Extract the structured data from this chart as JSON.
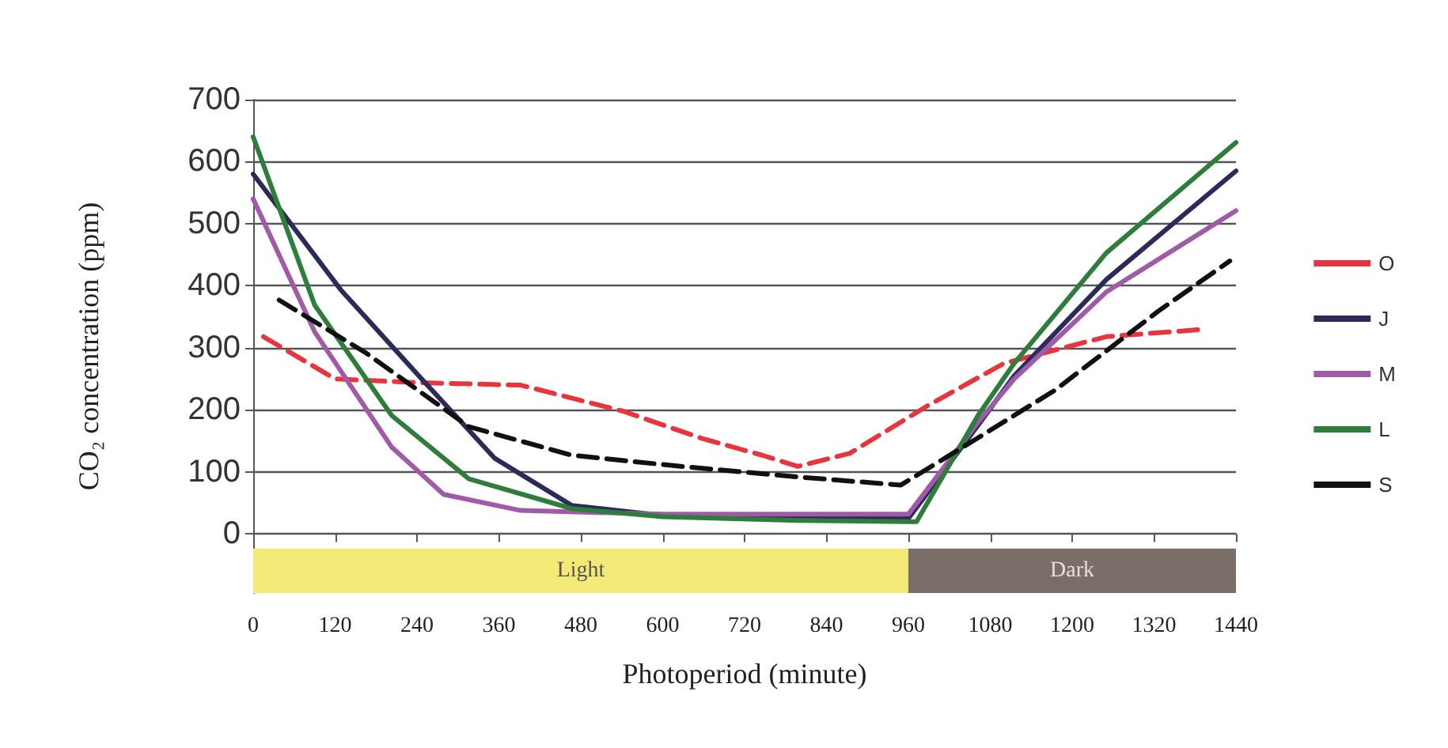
{
  "chart_data": {
    "type": "line",
    "xlabel": "Photoperiod (minute)",
    "ylabel": "CO₂ concentration (ppm)",
    "xlim": [
      0,
      1440
    ],
    "xticks": [
      0,
      120,
      240,
      360,
      480,
      600,
      720,
      840,
      960,
      1080,
      1200,
      1320,
      1440
    ],
    "ylim": [
      -95,
      700
    ],
    "yticks": [
      0,
      100,
      200,
      300,
      400,
      500,
      600,
      700
    ],
    "grid": "y",
    "legend": "right",
    "marker": "none",
    "bands": [
      {
        "axis": "x",
        "from": 0,
        "to": 960,
        "label": "Light",
        "color": "#f3ea78"
      },
      {
        "axis": "x",
        "from": 960,
        "to": 1440,
        "label": "Dark",
        "color": "#7a6e68"
      }
    ],
    "series": [
      {
        "name": "O",
        "color": "#e8343c",
        "line_style": "dashed",
        "x": [
          15,
          120,
          240,
          392,
          542,
          655,
          746,
          798,
          874,
          987,
          1100,
          1250,
          1394
        ],
        "values": [
          318,
          250,
          244,
          240,
          198,
          155,
          127,
          109,
          130,
          206,
          275,
          318,
          330
        ]
      },
      {
        "name": "J",
        "color": "#2b2a5a",
        "line_style": "solid",
        "x": [
          0,
          128,
          241,
          354,
          467,
          600,
          800,
          960,
          1062,
          1115,
          1250,
          1440
        ],
        "values": [
          580,
          394,
          257,
          122,
          46,
          30,
          25,
          25,
          175,
          255,
          410,
          585
        ]
      },
      {
        "name": "M",
        "color": "#a05aa8",
        "line_style": "solid",
        "x": [
          0,
          90,
          203,
          279,
          392,
          600,
          800,
          960,
          1062,
          1115,
          1250,
          1440
        ],
        "values": [
          540,
          326,
          140,
          64,
          38,
          32,
          32,
          32,
          180,
          250,
          390,
          521
        ]
      },
      {
        "name": "L",
        "color": "#2e7d3a",
        "line_style": "solid",
        "x": [
          0,
          90,
          203,
          316,
          467,
          600,
          800,
          960,
          972,
          1062,
          1115,
          1250,
          1440
        ],
        "values": [
          640,
          369,
          191,
          89,
          41,
          28,
          22,
          20,
          20,
          191,
          275,
          453,
          631
        ]
      },
      {
        "name": "S",
        "color": "#111111",
        "line_style": "dashed",
        "x": [
          38,
          165,
          316,
          467,
          618,
          798,
          949,
          1062,
          1175,
          1326,
          1431
        ],
        "values": [
          377,
          292,
          173,
          127,
          110,
          92,
          79,
          155,
          232,
          359,
          440
        ]
      }
    ]
  }
}
